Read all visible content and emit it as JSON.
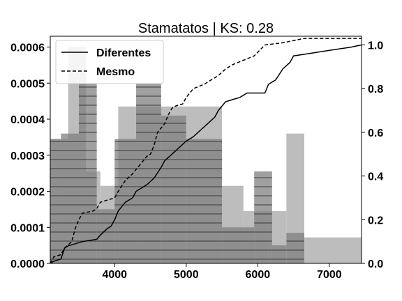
{
  "chart_data": {
    "type": "bar",
    "title": "Stamatatos | KS: 0.28",
    "xlim": [
      3100,
      7450
    ],
    "ylim_left": [
      0,
      0.00063
    ],
    "ylim_right": [
      0,
      1.04
    ],
    "x_ticks": [
      4000,
      5000,
      6000,
      7000
    ],
    "x_tick_labels": [
      "4000",
      "5000",
      "6000",
      "7000"
    ],
    "y_left_ticks": [
      0,
      0.0001,
      0.0002,
      0.0003,
      0.0004,
      0.0005,
      0.0006
    ],
    "y_left_tick_labels": [
      "0.0000",
      "0.0001",
      "0.0002",
      "0.0003",
      "0.0004",
      "0.0005",
      "0.0006"
    ],
    "y_right_ticks": [
      0,
      0.2,
      0.4,
      0.6,
      0.8,
      1.0
    ],
    "y_right_tick_labels": [
      "0.0",
      "0.2",
      "0.4",
      "0.6",
      "0.8",
      "1.0"
    ],
    "grid": false,
    "legend_position": "top-left",
    "series": [
      {
        "name": "Diferentes",
        "kind": "histogram",
        "color": "#bdbdbd",
        "bins": [
          {
            "x0": 3100,
            "x1": 3350,
            "y": 0.000345
          },
          {
            "x0": 3350,
            "x1": 3600,
            "y": 0.0006
          },
          {
            "x0": 3600,
            "x1": 3800,
            "y": 0.000255
          },
          {
            "x0": 3800,
            "x1": 4050,
            "y": 0.000215
          },
          {
            "x0": 4050,
            "x1": 4300,
            "y": 0.000435
          },
          {
            "x0": 4300,
            "x1": 4650,
            "y": 0.000435
          },
          {
            "x0": 4650,
            "x1": 5000,
            "y": 0.000435
          },
          {
            "x0": 5000,
            "x1": 5500,
            "y": 0.000435
          },
          {
            "x0": 5500,
            "x1": 5800,
            "y": 0.000215
          },
          {
            "x0": 5800,
            "x1": 6150,
            "y": 0.000145
          },
          {
            "x0": 6150,
            "x1": 6400,
            "y": 0.000145
          },
          {
            "x0": 6400,
            "x1": 6650,
            "y": 0.00036
          },
          {
            "x0": 6650,
            "x1": 7450,
            "y": 7.2e-05
          }
        ]
      },
      {
        "name": "Mesmo",
        "kind": "histogram",
        "color": "#808080",
        "hatch": "horizontal",
        "bins": [
          {
            "x0": 3100,
            "x1": 3250,
            "y": 0.000345
          },
          {
            "x0": 3250,
            "x1": 3500,
            "y": 0.00036
          },
          {
            "x0": 3500,
            "x1": 3750,
            "y": 0.0005
          },
          {
            "x0": 3750,
            "x1": 4000,
            "y": 0.00015
          },
          {
            "x0": 4000,
            "x1": 4300,
            "y": 0.000345
          },
          {
            "x0": 4300,
            "x1": 4650,
            "y": 0.0005
          },
          {
            "x0": 4650,
            "x1": 5000,
            "y": 0.00041
          },
          {
            "x0": 5000,
            "x1": 5500,
            "y": 0.000345
          },
          {
            "x0": 5500,
            "x1": 5950,
            "y": 0.0001
          },
          {
            "x0": 5950,
            "x1": 6200,
            "y": 0.000255
          },
          {
            "x0": 6200,
            "x1": 6400,
            "y": 5e-05
          },
          {
            "x0": 6400,
            "x1": 6650,
            "y": 8.5e-05
          }
        ]
      },
      {
        "name": "Diferentes",
        "kind": "ecdf",
        "line": "solid",
        "points": [
          [
            3100,
            0
          ],
          [
            3150,
            0.01
          ],
          [
            3250,
            0.02
          ],
          [
            3300,
            0.07
          ],
          [
            3350,
            0.08
          ],
          [
            3450,
            0.09
          ],
          [
            3550,
            0.1
          ],
          [
            3750,
            0.11
          ],
          [
            3800,
            0.13
          ],
          [
            3900,
            0.16
          ],
          [
            3950,
            0.17
          ],
          [
            4000,
            0.2
          ],
          [
            4050,
            0.24
          ],
          [
            4150,
            0.28
          ],
          [
            4250,
            0.3
          ],
          [
            4300,
            0.33
          ],
          [
            4350,
            0.34
          ],
          [
            4450,
            0.36
          ],
          [
            4550,
            0.39
          ],
          [
            4650,
            0.44
          ],
          [
            4700,
            0.47
          ],
          [
            4800,
            0.5
          ],
          [
            4900,
            0.53
          ],
          [
            5000,
            0.56
          ],
          [
            5100,
            0.58
          ],
          [
            5200,
            0.61
          ],
          [
            5300,
            0.64
          ],
          [
            5400,
            0.67
          ],
          [
            5450,
            0.7
          ],
          [
            5550,
            0.74
          ],
          [
            5650,
            0.75
          ],
          [
            5750,
            0.76
          ],
          [
            5850,
            0.78
          ],
          [
            5950,
            0.78
          ],
          [
            6100,
            0.78
          ],
          [
            6150,
            0.82
          ],
          [
            6250,
            0.84
          ],
          [
            6350,
            0.89
          ],
          [
            6450,
            0.92
          ],
          [
            6500,
            0.95
          ],
          [
            6700,
            0.96
          ],
          [
            6900,
            0.97
          ],
          [
            7100,
            0.98
          ],
          [
            7300,
            0.99
          ],
          [
            7450,
            1.0
          ]
        ]
      },
      {
        "name": "Mesmo",
        "kind": "ecdf",
        "line": "dashed",
        "points": [
          [
            3100,
            0
          ],
          [
            3150,
            0.03
          ],
          [
            3250,
            0.04
          ],
          [
            3300,
            0.07
          ],
          [
            3400,
            0.1
          ],
          [
            3450,
            0.16
          ],
          [
            3500,
            0.2
          ],
          [
            3550,
            0.23
          ],
          [
            3700,
            0.24
          ],
          [
            3750,
            0.25
          ],
          [
            3800,
            0.28
          ],
          [
            3900,
            0.29
          ],
          [
            4000,
            0.3
          ],
          [
            4050,
            0.33
          ],
          [
            4150,
            0.38
          ],
          [
            4250,
            0.41
          ],
          [
            4300,
            0.43
          ],
          [
            4350,
            0.45
          ],
          [
            4450,
            0.49
          ],
          [
            4500,
            0.5
          ],
          [
            4550,
            0.54
          ],
          [
            4600,
            0.6
          ],
          [
            4700,
            0.64
          ],
          [
            4750,
            0.68
          ],
          [
            4800,
            0.71
          ],
          [
            4850,
            0.72
          ],
          [
            4950,
            0.73
          ],
          [
            5000,
            0.76
          ],
          [
            5100,
            0.8
          ],
          [
            5250,
            0.82
          ],
          [
            5300,
            0.83
          ],
          [
            5450,
            0.86
          ],
          [
            5550,
            0.89
          ],
          [
            5650,
            0.91
          ],
          [
            5800,
            0.93
          ],
          [
            5950,
            0.95
          ],
          [
            6100,
            1.0
          ],
          [
            6350,
            1.01
          ],
          [
            6650,
            1.03
          ],
          [
            7450,
            1.03
          ]
        ]
      }
    ]
  }
}
